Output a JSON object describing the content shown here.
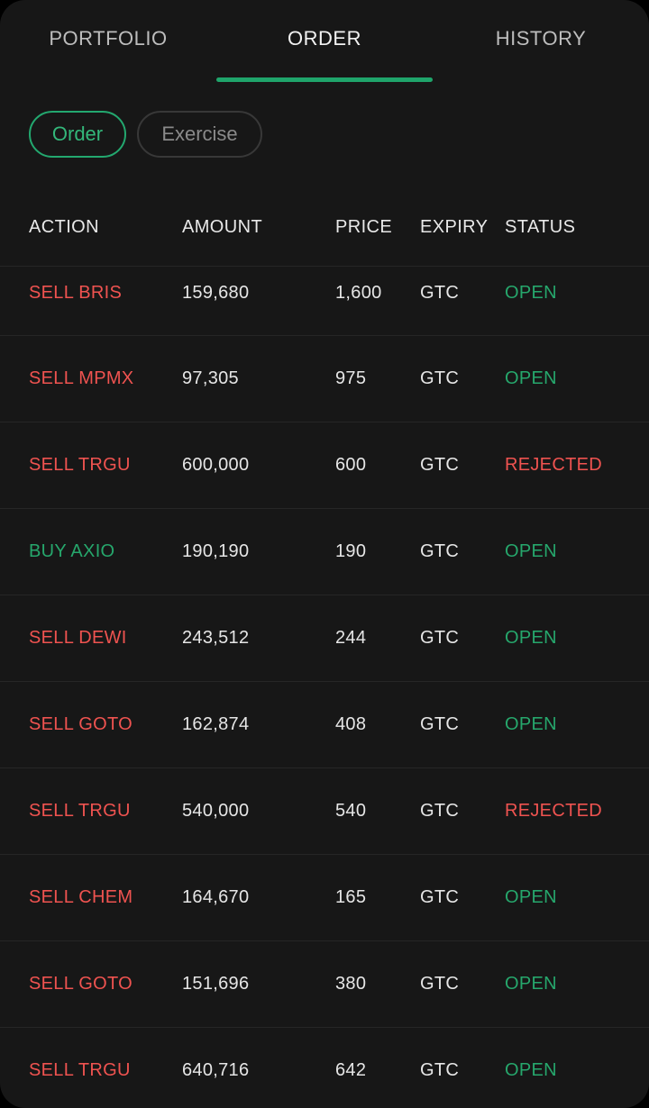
{
  "tabs": [
    {
      "label": "PORTFOLIO",
      "active": false
    },
    {
      "label": "ORDER",
      "active": true
    },
    {
      "label": "HISTORY",
      "active": false
    }
  ],
  "filters": {
    "order_label": "Order",
    "exercise_label": "Exercise",
    "selected": "Order"
  },
  "table": {
    "headers": {
      "action": "ACTION",
      "amount": "AMOUNT",
      "price": "PRICE",
      "expiry": "EXPIRY",
      "status": "STATUS"
    },
    "rows": [
      {
        "action": "SELL BRIS",
        "side": "sell",
        "amount": "159,680",
        "price": "1,600",
        "expiry": "GTC",
        "status": "OPEN"
      },
      {
        "action": "SELL MPMX",
        "side": "sell",
        "amount": "97,305",
        "price": "975",
        "expiry": "GTC",
        "status": "OPEN"
      },
      {
        "action": "SELL TRGU",
        "side": "sell",
        "amount": "600,000",
        "price": "600",
        "expiry": "GTC",
        "status": "REJECTED"
      },
      {
        "action": "BUY AXIO",
        "side": "buy",
        "amount": "190,190",
        "price": "190",
        "expiry": "GTC",
        "status": "OPEN"
      },
      {
        "action": "SELL DEWI",
        "side": "sell",
        "amount": "243,512",
        "price": "244",
        "expiry": "GTC",
        "status": "OPEN"
      },
      {
        "action": "SELL GOTO",
        "side": "sell",
        "amount": "162,874",
        "price": "408",
        "expiry": "GTC",
        "status": "OPEN"
      },
      {
        "action": "SELL TRGU",
        "side": "sell",
        "amount": "540,000",
        "price": "540",
        "expiry": "GTC",
        "status": "REJECTED"
      },
      {
        "action": "SELL CHEM",
        "side": "sell",
        "amount": "164,670",
        "price": "165",
        "expiry": "GTC",
        "status": "OPEN"
      },
      {
        "action": "SELL GOTO",
        "side": "sell",
        "amount": "151,696",
        "price": "380",
        "expiry": "GTC",
        "status": "OPEN"
      },
      {
        "action": "SELL TRGU",
        "side": "sell",
        "amount": "640,716",
        "price": "642",
        "expiry": "GTC",
        "status": "OPEN"
      }
    ]
  },
  "colors": {
    "accent": "#1fa56b",
    "sell": "#ef5350",
    "buy": "#26a76c",
    "background": "#171717"
  }
}
